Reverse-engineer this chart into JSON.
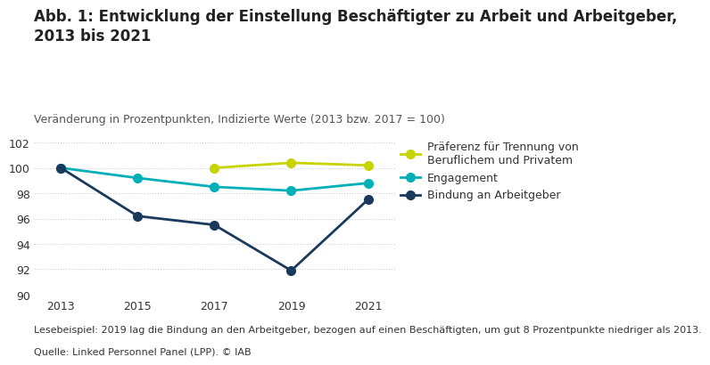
{
  "title": "Abb. 1: Entwicklung der Einstellung Beschäftigter zu Arbeit und Arbeitgeber,\n2013 bis 2021",
  "subtitle": "Veränderung in Prozentpunkten, Indizierte Werte (2013 bzw. 2017 = 100)",
  "years": [
    2013,
    2015,
    2017,
    2019,
    2021
  ],
  "praeferenz": [
    null,
    null,
    100.0,
    100.4,
    100.2
  ],
  "engagement": [
    100.0,
    99.2,
    98.5,
    98.2,
    98.8
  ],
  "bindung": [
    100.0,
    96.2,
    95.5,
    91.9,
    97.5
  ],
  "praeferenz_color": "#c8d400",
  "engagement_color": "#00b0b9",
  "bindung_color": "#1a3a5c",
  "ylim": [
    90,
    102
  ],
  "yticks": [
    90,
    92,
    94,
    96,
    98,
    100,
    102
  ],
  "xticks": [
    2013,
    2015,
    2017,
    2019,
    2021
  ],
  "legend_praeferenz": "Präferenz für Trennung von\nBeruflichem und Privatem",
  "legend_engagement": "Engagement",
  "legend_bindung": "Bindung an Arbeitgeber",
  "footnote1": "Lesebeispiel: 2019 lag die Bindung an den Arbeitgeber, bezogen auf einen Beschäftigten, um gut 8 Prozentpunkte niedriger als 2013.",
  "footnote2": "Quelle: Linked Personnel Panel (LPP). © IAB",
  "background_color": "#ffffff",
  "grid_color": "#cccccc",
  "marker_size": 7,
  "linewidth": 2.0,
  "title_fontsize": 12,
  "subtitle_fontsize": 9,
  "tick_fontsize": 9,
  "legend_fontsize": 9,
  "footnote_fontsize": 8
}
